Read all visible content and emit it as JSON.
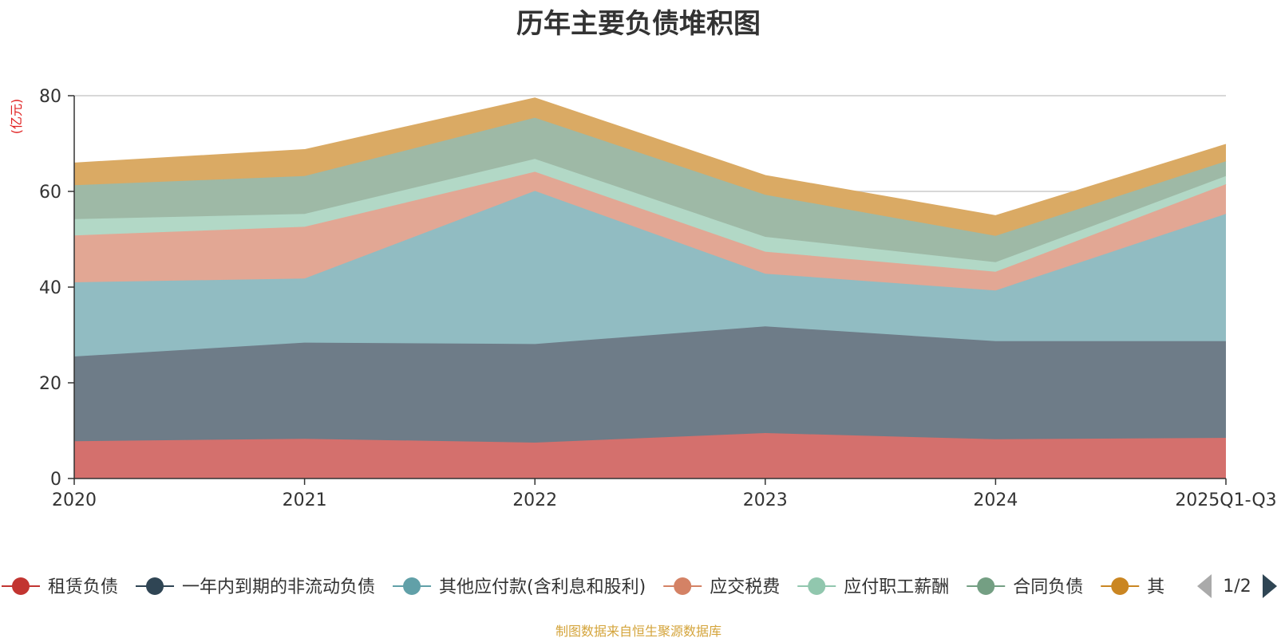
{
  "footer": {
    "source": "制图数据来自恒生聚源数据库"
  },
  "legend": {
    "page_indicator": "1/2",
    "prev_icon": "triangle-left-icon",
    "next_icon": "triangle-right-icon"
  },
  "chart_data": {
    "type": "area",
    "stacked": true,
    "title": "历年主要负债堆积图",
    "ylabel": "(亿元)",
    "ylabel_color": "#e02020",
    "xlabel": "",
    "ylim": [
      0,
      80
    ],
    "yticks": [
      0,
      20,
      40,
      60,
      80
    ],
    "categories": [
      "2020",
      "2021",
      "2022",
      "2023",
      "2024",
      "2025Q1-Q3"
    ],
    "grid": true,
    "legend_position": "bottom",
    "series": [
      {
        "name": "租赁负债",
        "color": "#c23531",
        "fill": "#d4706d",
        "values": [
          7.8,
          8.3,
          7.5,
          9.5,
          8.2,
          8.5
        ]
      },
      {
        "name": "一年内到期的非流动负债",
        "color": "#2f4554",
        "fill": "#6e7c88",
        "values": [
          17.7,
          20.1,
          20.6,
          22.3,
          20.5,
          20.2
        ]
      },
      {
        "name": "其他应付款(含利息和股利)",
        "color": "#61a0a8",
        "fill": "#91bcc2",
        "values": [
          15.5,
          13.4,
          32.0,
          11.0,
          10.6,
          26.6
        ]
      },
      {
        "name": "应交税费",
        "color": "#d48265",
        "fill": "#e2a794",
        "values": [
          9.8,
          10.8,
          4.0,
          4.6,
          3.9,
          6.2
        ]
      },
      {
        "name": "应付职工薪酬",
        "color": "#91c7ae",
        "fill": "#b2d8c6",
        "values": [
          3.4,
          2.7,
          2.7,
          3.1,
          2.0,
          1.7
        ]
      },
      {
        "name": "合同负债",
        "color": "#749f83",
        "fill": "#9eb9a6",
        "values": [
          7.1,
          7.9,
          8.6,
          8.8,
          5.5,
          3.1
        ]
      },
      {
        "name": "其他",
        "color": "#ca8622",
        "fill": "#daaa64",
        "values": [
          4.6,
          5.5,
          4.1,
          4.0,
          4.2,
          3.5
        ]
      }
    ]
  }
}
